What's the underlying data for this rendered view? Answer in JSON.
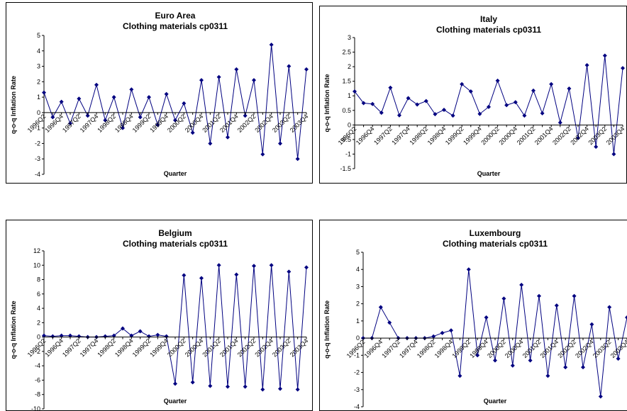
{
  "chart_data": [
    {
      "type": "line",
      "title": "Euro Area",
      "subtitle": "Clothing materials cp0311",
      "x_label": "Quarter",
      "y_label": "q-o-q Inflation Rate",
      "categories": [
        "1996Q2",
        null,
        "1996Q4",
        null,
        "1997Q2",
        null,
        "1997Q4",
        null,
        "1998Q2",
        null,
        "1998Q4",
        null,
        "1999Q2",
        null,
        "1999Q4",
        null,
        "2000Q2",
        null,
        "2000Q4",
        null,
        "2001Q2",
        null,
        "2001Q4",
        null,
        "2002Q2",
        null,
        "2002Q4",
        null,
        "2003Q2",
        null,
        "2003Q4"
      ],
      "series": [
        {
          "color": "#000080",
          "values": [
            1.3,
            -0.3,
            0.7,
            -0.7,
            0.9,
            -0.2,
            1.8,
            -0.5,
            1.0,
            -1.0,
            1.5,
            -0.3,
            1.0,
            -0.8,
            1.2,
            -0.5,
            0.6,
            -1.3,
            2.1,
            -2.0,
            2.3,
            -1.6,
            2.8,
            -0.2,
            2.1,
            -2.7,
            4.4,
            -2.0,
            3.0,
            -3.0,
            2.8
          ]
        }
      ],
      "ylim": [
        -4,
        5
      ],
      "yticks": [
        -4,
        -3,
        -2,
        -1,
        0,
        1,
        2,
        3,
        4,
        5
      ]
    },
    {
      "type": "line",
      "title": "Italy",
      "subtitle": "Clothing materials cp0311",
      "x_label": "Quarter",
      "y_label": "q-o-q Inflation Rate",
      "categories": [
        "1996Q2",
        null,
        "1996Q4",
        null,
        "1997Q2",
        null,
        "1997Q4",
        null,
        "1998Q2",
        null,
        "1998Q4",
        null,
        "1999Q2",
        null,
        "1999Q4",
        null,
        "2000Q2",
        null,
        "2000Q4",
        null,
        "2001Q2",
        null,
        "2001Q4",
        null,
        "2002Q2",
        null,
        "2002Q4",
        null,
        "2003Q2",
        null,
        "2003Q4"
      ],
      "series": [
        {
          "color": "#000080",
          "values": [
            1.15,
            0.75,
            0.72,
            0.42,
            1.28,
            0.33,
            0.92,
            0.7,
            0.82,
            0.37,
            0.52,
            0.32,
            1.4,
            1.15,
            0.38,
            0.62,
            1.52,
            0.68,
            0.78,
            0.32,
            1.18,
            0.4,
            1.4,
            0.08,
            1.25,
            -0.45,
            2.05,
            -0.75,
            2.38,
            -1.0,
            1.95
          ]
        }
      ],
      "ylim": [
        -1.5,
        3
      ],
      "yticks": [
        -1.5,
        -1,
        -0.5,
        0,
        0.5,
        1,
        1.5,
        2,
        2.5,
        3
      ]
    },
    {
      "type": "line",
      "title": "Belgium",
      "subtitle": "Clothing materials cp0311",
      "x_label": "Quarter",
      "y_label": "q-o-q Inflation Rate",
      "categories": [
        "1996Q2",
        null,
        "1996Q4",
        null,
        "1997Q2",
        null,
        "1997Q4",
        null,
        "1998Q2",
        null,
        "1998Q4",
        null,
        "1999Q2",
        null,
        "1999Q4",
        null,
        "2000Q2",
        null,
        "2000Q4",
        null,
        "2001Q2",
        null,
        "2001Q4",
        null,
        "2002Q2",
        null,
        "2002Q4",
        null,
        "2003Q2",
        null,
        "2003Q4"
      ],
      "series": [
        {
          "color": "#000080",
          "values": [
            0.2,
            0.1,
            0.2,
            0.2,
            0.1,
            0,
            0,
            0.1,
            0.2,
            1.2,
            0.2,
            0.8,
            0.1,
            0.3,
            0.1,
            -6.5,
            8.6,
            -6.3,
            8.2,
            -6.8,
            10.0,
            -6.9,
            8.7,
            -6.9,
            9.9,
            -7.3,
            10.0,
            -7.2,
            9.1,
            -7.3,
            9.7
          ]
        }
      ],
      "ylim": [
        -10,
        12
      ],
      "yticks": [
        -10,
        -8,
        -6,
        -4,
        -2,
        0,
        2,
        4,
        6,
        8,
        10,
        12
      ]
    },
    {
      "type": "line",
      "title": "Luxembourg",
      "subtitle": "Clothing materials cp0311",
      "x_label": "Quarter",
      "y_label": "q-o-q Inflation Rate",
      "categories": [
        "1996Q2",
        null,
        "1996Q4",
        null,
        "1997Q2",
        null,
        "1997Q4",
        null,
        "1998Q2",
        null,
        "1998Q4",
        null,
        "1999Q2",
        null,
        "1999Q4",
        null,
        "2000Q2",
        null,
        "2000Q4",
        null,
        "2001Q2",
        null,
        "2001Q4",
        null,
        "2002Q2",
        null,
        "2002Q4",
        null,
        "2003Q2",
        null,
        "2003Q4"
      ],
      "series": [
        {
          "color": "#000080",
          "values": [
            0,
            0,
            1.8,
            0.9,
            0,
            0,
            0,
            0,
            0.1,
            0.3,
            0.45,
            -2.2,
            4.0,
            -1.0,
            1.2,
            -1.3,
            2.3,
            -1.6,
            3.1,
            -1.3,
            2.45,
            -2.2,
            1.9,
            -1.7,
            2.45,
            -1.7,
            0.8,
            -3.4,
            1.8,
            -1.2,
            1.2
          ]
        }
      ],
      "ylim": [
        -4,
        5
      ],
      "yticks": [
        -4,
        -3,
        -2,
        -1,
        0,
        1,
        2,
        3,
        4,
        5
      ]
    }
  ]
}
